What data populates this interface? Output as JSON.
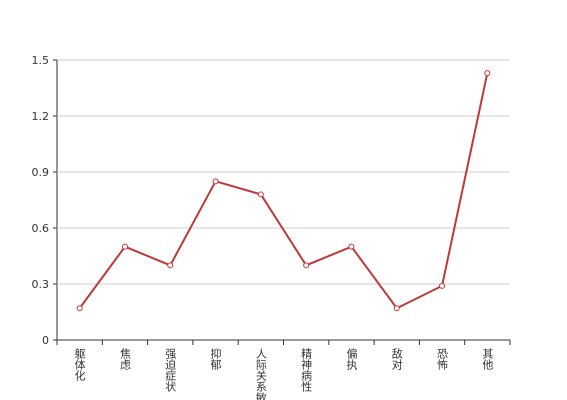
{
  "chart_data": {
    "type": "line",
    "categories": [
      "躯体化",
      "焦虑",
      "强迫症状",
      "抑郁",
      "人际关系敏感",
      "精神病性",
      "偏执",
      "敌对",
      "恐怖",
      "其他"
    ],
    "values": [
      0.17,
      0.5,
      0.4,
      0.85,
      0.78,
      0.4,
      0.5,
      0.17,
      0.29,
      1.43
    ],
    "color": "#c0393a",
    "ylim": [
      0,
      1.5
    ],
    "yticks": [
      0,
      0.3,
      0.6,
      0.9,
      1.2,
      1.5
    ],
    "grid": true
  }
}
